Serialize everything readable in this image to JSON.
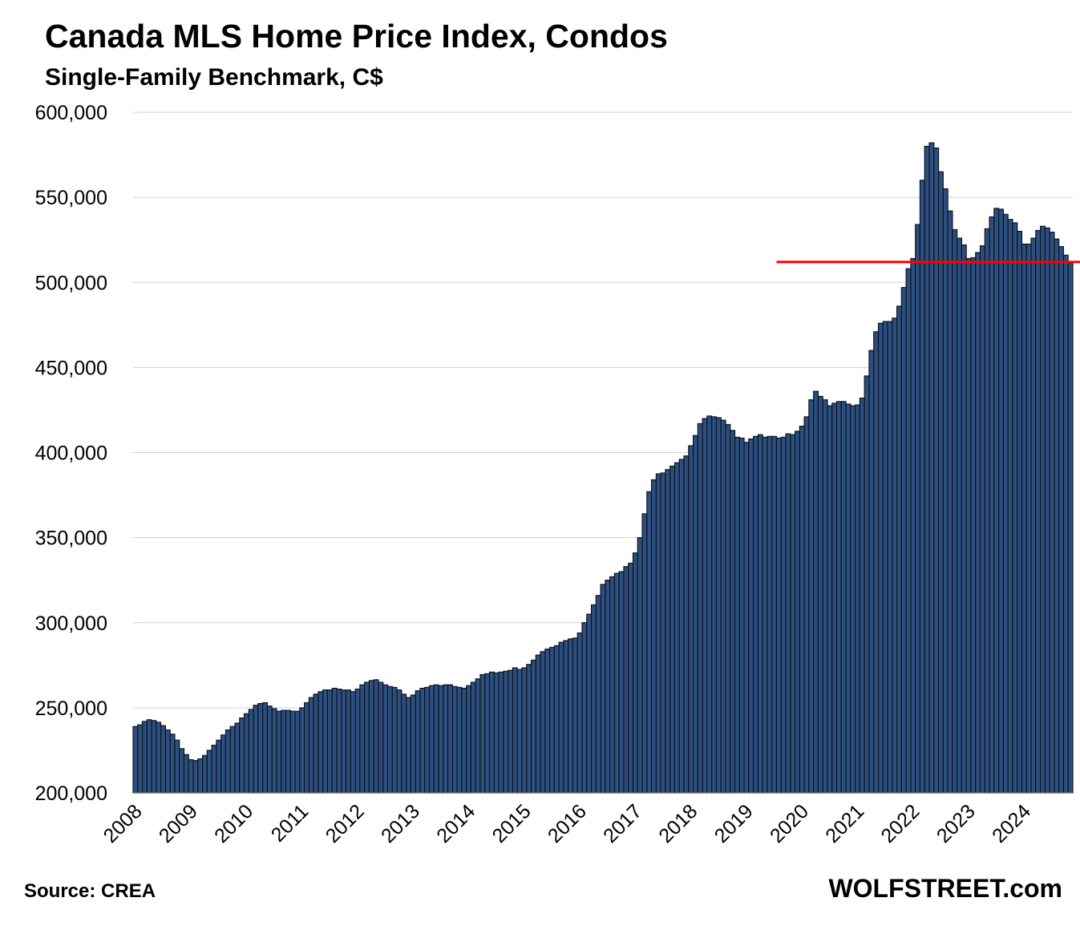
{
  "chart_data": {
    "type": "bar",
    "title": "Canada MLS Home Price Index, Condos",
    "subtitle": "Single-Family Benchmark, C$",
    "ylim": [
      200000,
      600000
    ],
    "y_ticks": [
      "200,000",
      "250,000",
      "300,000",
      "350,000",
      "400,000",
      "450,000",
      "500,000",
      "550,000",
      "600,000"
    ],
    "x_tick_labels": [
      "2008",
      "2009",
      "2010",
      "2011",
      "2012",
      "2013",
      "2014",
      "2015",
      "2016",
      "2017",
      "2018",
      "2019",
      "2020",
      "2021",
      "2022",
      "2023",
      "2024"
    ],
    "grid": true,
    "colors": {
      "bar": "#2c4f7f",
      "bar_edge": "#0d1420",
      "reference_line": "#ff0000",
      "grid": "#c9d3de"
    },
    "x_start": "2008-01",
    "frequency": "monthly",
    "reference_line": {
      "value": 512000,
      "from": "2019-08",
      "to": "2024-12"
    },
    "series": [
      {
        "values": [
          239000,
          240000,
          242000,
          243000,
          242500,
          241500,
          239500,
          237000,
          234500,
          231000,
          226000,
          222500,
          219500,
          219000,
          220000,
          222000,
          225000,
          228000,
          231000,
          234000,
          237000,
          239000,
          241000,
          244000,
          246500,
          249000,
          251500,
          252500,
          253000,
          251000,
          249500,
          248000,
          248500,
          248500,
          248000,
          248000,
          250000,
          253000,
          256000,
          258000,
          259500,
          260500,
          260500,
          261500,
          261000,
          260500,
          260500,
          259500,
          261000,
          263500,
          265000,
          266000,
          266500,
          265000,
          263500,
          262500,
          262000,
          260500,
          258000,
          256000,
          257500,
          260000,
          261500,
          262000,
          263000,
          263500,
          263000,
          263500,
          263500,
          262500,
          262000,
          261500,
          263000,
          265000,
          267000,
          269500,
          270000,
          271000,
          270500,
          271000,
          271500,
          272000,
          273500,
          272500,
          273500,
          275500,
          278000,
          281000,
          283000,
          284500,
          285500,
          286500,
          288500,
          289500,
          290500,
          291000,
          294000,
          300000,
          305000,
          310500,
          316000,
          322500,
          325000,
          327000,
          329000,
          330000,
          333000,
          335000,
          341000,
          350000,
          364000,
          377000,
          384000,
          387500,
          388000,
          390000,
          392000,
          394000,
          396000,
          398000,
          404000,
          410000,
          417000,
          420000,
          421500,
          421000,
          420500,
          419000,
          416500,
          413000,
          409000,
          408500,
          406000,
          408000,
          409500,
          410500,
          409000,
          409500,
          409500,
          408500,
          409000,
          411000,
          410500,
          412500,
          415500,
          421000,
          431000,
          436000,
          433000,
          431000,
          427500,
          429000,
          430000,
          430000,
          428500,
          427500,
          428000,
          432000,
          445000,
          460000,
          471000,
          476000,
          477000,
          477000,
          479000,
          486000,
          497000,
          508000,
          514000,
          534000,
          560000,
          580000,
          582000,
          579000,
          565000,
          555000,
          542000,
          531000,
          526000,
          522000,
          514000,
          514500,
          517500,
          521500,
          531500,
          538500,
          543500,
          543000,
          540000,
          537000,
          535000,
          530000,
          522500,
          522500,
          526000,
          530500,
          533000,
          532000,
          529500,
          525500,
          521000,
          516000,
          511500
        ]
      }
    ]
  },
  "footer": {
    "source": "Source: CREA",
    "brand": "WOLFSTREET.com"
  }
}
